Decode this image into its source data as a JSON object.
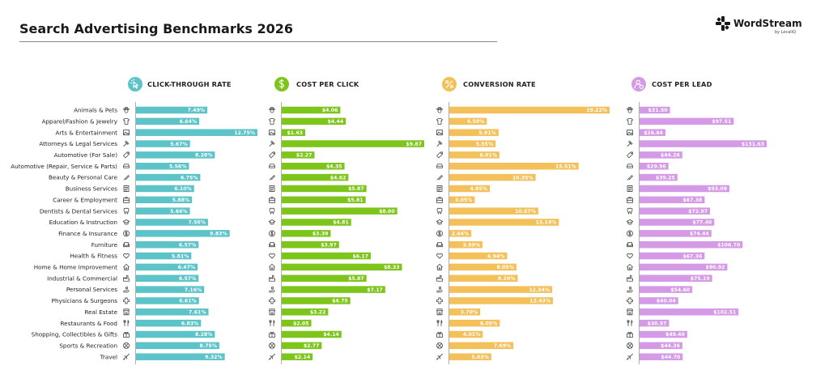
{
  "header": {
    "title": "Search Advertising Benchmarks 2026",
    "brand_name": "WordStream",
    "brand_sub": "by LocaliQ"
  },
  "chart_data": {
    "type": "bar",
    "orientation": "horizontal",
    "categories": [
      "Animals & Pets",
      "Apparel/Fashion & Jewelry",
      "Arts & Entertainment",
      "Attorneys & Legal Services",
      "Automotive (For Sale)",
      "Automotive (Repair, Service & Parts)",
      "Beauty & Personal Care",
      "Business Services",
      "Career & Employment",
      "Dentists & Dental Services",
      "Education & Instruction",
      "Finance & Insurance",
      "Furniture",
      "Health & Fitness",
      "Home & Home Improvement",
      "Industrial & Commercial",
      "Personal Services",
      "Physicians & Surgeons",
      "Real Estate",
      "Restaurants & Food",
      "Shopping, Collectibles & Gifts",
      "Sports & Recreation",
      "Travel"
    ],
    "category_icons": [
      "paw-icon",
      "shirt-icon",
      "picture-icon",
      "gavel-icon",
      "car-tag-icon",
      "car-front-icon",
      "brush-icon",
      "document-icon",
      "briefcase-icon",
      "tooth-icon",
      "graduation-cap-icon",
      "dollar-coin-icon",
      "sofa-icon",
      "heart-icon",
      "house-icon",
      "factory-icon",
      "hand-icon",
      "medical-cross-icon",
      "storefront-icon",
      "fork-knife-icon",
      "gift-icon",
      "ball-icon",
      "airplane-icon"
    ],
    "series": [
      {
        "name": "CLICK-THROUGH RATE",
        "color": "#5cc3c9",
        "icon": "cursor-click-icon",
        "values": [
          7.49,
          6.64,
          12.75,
          5.67,
          8.28,
          5.56,
          6.75,
          6.1,
          5.88,
          5.66,
          7.56,
          9.83,
          6.57,
          5.81,
          6.47,
          6.57,
          7.16,
          6.61,
          7.61,
          6.83,
          8.28,
          8.75,
          9.32
        ],
        "labels": [
          "7.49%",
          "6.64%",
          "12.75%",
          "5.67%",
          "8.28%",
          "5.56%",
          "6.75%",
          "6.10%",
          "5.88%",
          "5.66%",
          "7.56%",
          "9.83%",
          "6.57%",
          "5.81%",
          "6.47%",
          "6.57%",
          "7.16%",
          "6.61%",
          "7.61%",
          "6.83%",
          "8.28%",
          "8.75%",
          "9.32%"
        ],
        "xlim": [
          0,
          12.75
        ]
      },
      {
        "name": "COST PER CLICK",
        "color": "#7ec51b",
        "icon": "dollar-cursor-icon",
        "values": [
          4.06,
          4.44,
          1.63,
          9.87,
          2.27,
          4.35,
          4.62,
          5.87,
          5.81,
          8.0,
          4.81,
          3.39,
          3.97,
          6.17,
          8.33,
          5.87,
          7.17,
          4.75,
          3.22,
          2.05,
          4.14,
          2.77,
          2.14
        ],
        "labels": [
          "$4.06",
          "$4.44",
          "$1.63",
          "$9.87",
          "$2.27",
          "$4.35",
          "$4.62",
          "$5.87",
          "$5.81",
          "$8.00",
          "$4.81",
          "$3.39",
          "$3.97",
          "$6.17",
          "$8.33",
          "$5.87",
          "$7.17",
          "$4.75",
          "$3.22",
          "$2.05",
          "$4.14",
          "$2.77",
          "$2.14"
        ],
        "xlim": [
          0,
          9.87
        ]
      },
      {
        "name": "CONVERSION RATE",
        "color": "#f4c05a",
        "icon": "percent-icon",
        "values": [
          19.22,
          4.5,
          5.91,
          5.55,
          6.01,
          15.51,
          10.35,
          4.85,
          3.05,
          10.67,
          13.14,
          2.64,
          3.99,
          6.94,
          8.05,
          8.2,
          12.34,
          12.43,
          3.7,
          6.05,
          4.01,
          7.69,
          5.03
        ],
        "labels": [
          "19.22%",
          "4.50%",
          "5.91%",
          "5.55%",
          "6.01%",
          "15.51%",
          "10.35%",
          "4.85%",
          "3.05%",
          "10.67%",
          "13.14%",
          "2.64%",
          "3.99%",
          "6.94%",
          "8.05%",
          "8.20%",
          "12.34%",
          "12.43%",
          "3.70%",
          "6.05%",
          "4.01%",
          "7.69%",
          "5.03%"
        ],
        "xlim": [
          0,
          19.22
        ]
      },
      {
        "name": "COST PER LEAD",
        "color": "#d49ae6",
        "icon": "user-dollar-icon",
        "values": [
          31.5,
          97.51,
          26.84,
          131.63,
          44.26,
          29.96,
          39.25,
          93.09,
          67.38,
          72.97,
          77.4,
          74.44,
          106.7,
          67.36,
          90.92,
          75.19,
          54.6,
          40.04,
          102.51,
          30.57,
          49.4,
          44.36,
          44.7
        ],
        "labels": [
          "$31.50",
          "$97.51",
          "$26.84",
          "$131.63",
          "$44.26",
          "$29.96",
          "$39.25",
          "$93.09",
          "$67.38",
          "$72.97",
          "$77.40",
          "$74.44",
          "$106.70",
          "$67.36",
          "$90.92",
          "$75.19",
          "$54.60",
          "$40.04",
          "$102.51",
          "$30.57",
          "$49.40",
          "$44.36",
          "$44.70"
        ],
        "xlim": [
          0,
          131.63
        ]
      }
    ]
  }
}
